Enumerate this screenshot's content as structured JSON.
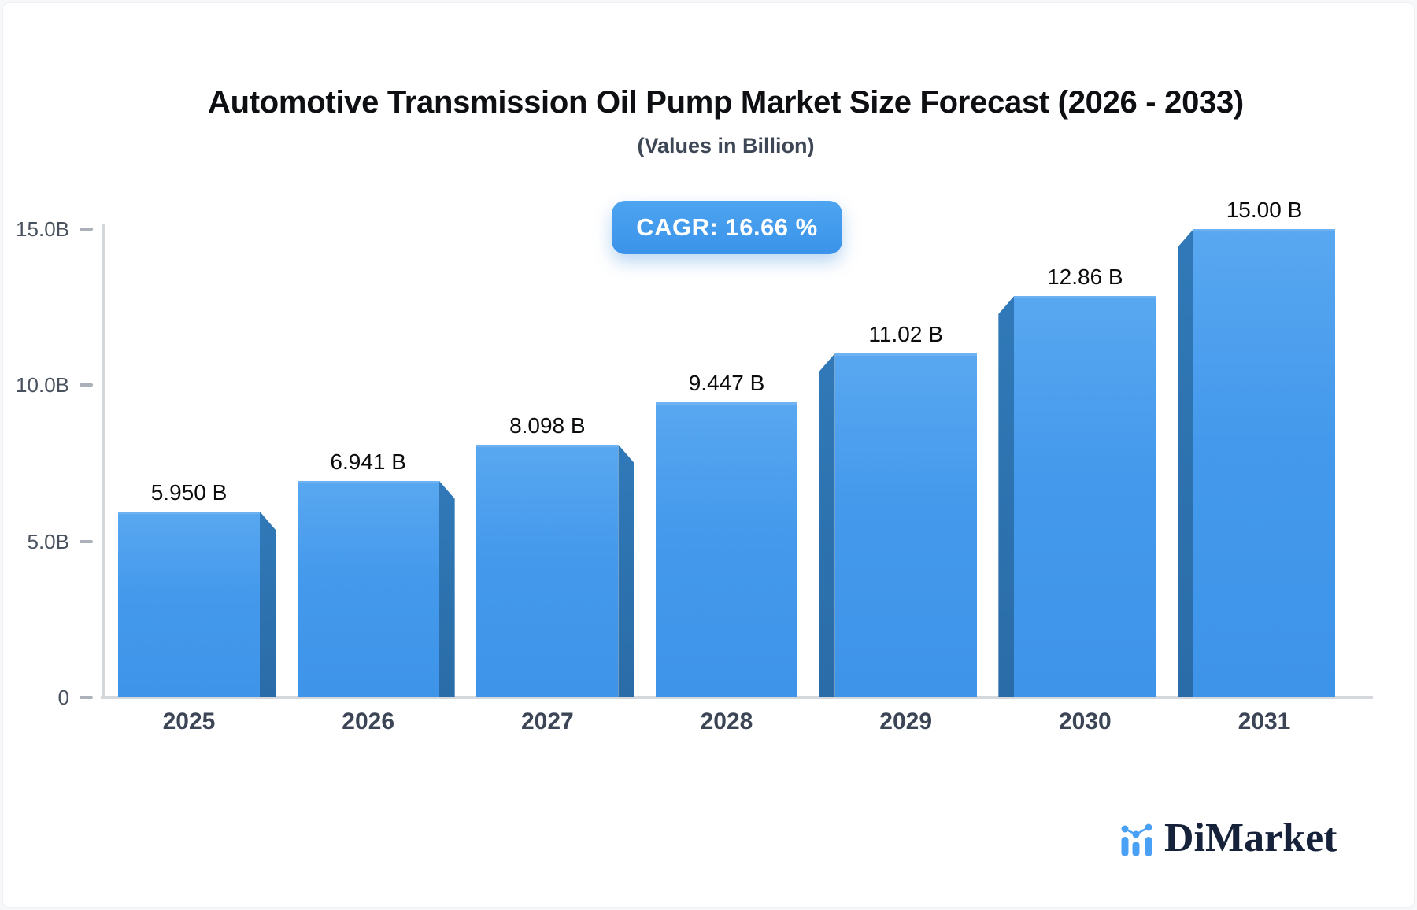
{
  "header": {
    "title": "Automotive Transmission Oil Pump Market Size Forecast (2026 - 2033)",
    "subtitle": "(Values in Billion)",
    "cagr_badge": "CAGR: 16.66 %"
  },
  "brand": {
    "name": "DiMarket",
    "icon": "mini-bar-line-chart-icon"
  },
  "chart_data": {
    "type": "bar",
    "title": "Automotive Transmission Oil Pump Market Size Forecast (2026 - 2033)",
    "subtitle": "(Values in Billion)",
    "categories": [
      "2025",
      "2026",
      "2027",
      "2028",
      "2029",
      "2030",
      "2031"
    ],
    "values": [
      5.95,
      6.941,
      8.098,
      9.447,
      11.02,
      12.86,
      15.0
    ],
    "bar_labels": [
      "5.950 B",
      "6.941 B",
      "8.098 B",
      "9.447 B",
      "11.02 B",
      "12.86 B",
      "15.00 B"
    ],
    "cagr_percent": 16.66,
    "y_axis": {
      "min": 0,
      "max": 15,
      "ticks": [
        {
          "label": "15.0B",
          "value": 15
        },
        {
          "label": "10.0B",
          "value": 10
        },
        {
          "label": "5.0B",
          "value": 5
        },
        {
          "label": "0",
          "value": 0
        }
      ]
    },
    "grid": false,
    "legend": false,
    "style": "3d-perspective-bars, center vanishing point",
    "colors": {
      "bar_face": "#4499ec",
      "bar_side": "#2d73b1",
      "badge_background": "#3e97ec",
      "badge_text": "#ffffff",
      "axis_line": "#d4d7db",
      "tick_text": "#49525f",
      "year_text": "#3b4556",
      "value_text": "#0b0c0e",
      "brand_blue": "#4aa0f5",
      "brand_navy": "#16213a"
    }
  }
}
